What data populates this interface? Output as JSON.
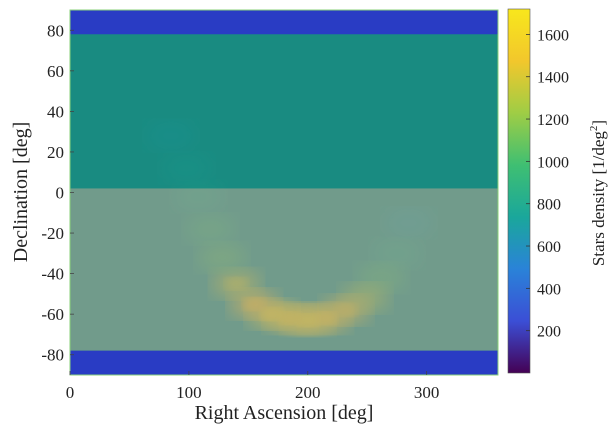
{
  "chart_data": {
    "type": "heatmap",
    "xlabel": "Right Ascension [deg]",
    "ylabel": "Declination [deg]",
    "xlim": [
      0,
      360
    ],
    "ylim": [
      -90,
      90
    ],
    "x_ticks": [
      0,
      100,
      200,
      300
    ],
    "y_ticks": [
      80,
      60,
      40,
      20,
      0,
      -20,
      -40,
      -60,
      -80
    ],
    "colorbar": {
      "label_prefix": "Stars density [1/deg",
      "label_sup": "2",
      "label_suffix": "]",
      "range": [
        0,
        1720
      ],
      "ticks": [
        200,
        400,
        600,
        800,
        1000,
        1200,
        1400,
        1600
      ],
      "colormap": [
        "#440154",
        "#3b4fd6",
        "#2a83d8",
        "#1aa79b",
        "#3fbf72",
        "#9fcd45",
        "#f2c72c",
        "#f8e71c"
      ]
    },
    "overlay_regions": [
      {
        "name": "polar cap north",
        "dec_range": [
          78,
          90
        ],
        "color": "#2a35c8"
      },
      {
        "name": "northern sky",
        "dec_range": [
          2,
          78
        ],
        "color": "#17837a"
      },
      {
        "name": "southern sky",
        "dec_range": [
          -78,
          2
        ],
        "color": "#a59c8b"
      },
      {
        "name": "polar cap south",
        "dec_range": [
          -90,
          -78
        ],
        "color": "#2a35c8"
      }
    ],
    "galactic_plane_band": {
      "ra": [
        285,
        275,
        262,
        248,
        232,
        215,
        200,
        185,
        170,
        155,
        140,
        128,
        118,
        108,
        98,
        85
      ],
      "dec": [
        -15,
        -30,
        -42,
        -52,
        -58,
        -62,
        -63,
        -62,
        -60,
        -55,
        -45,
        -32,
        -18,
        -2,
        12,
        28
      ],
      "density": [
        700,
        800,
        950,
        1200,
        1400,
        1550,
        1650,
        1600,
        1650,
        1500,
        1300,
        1000,
        900,
        800,
        750,
        700
      ]
    }
  }
}
